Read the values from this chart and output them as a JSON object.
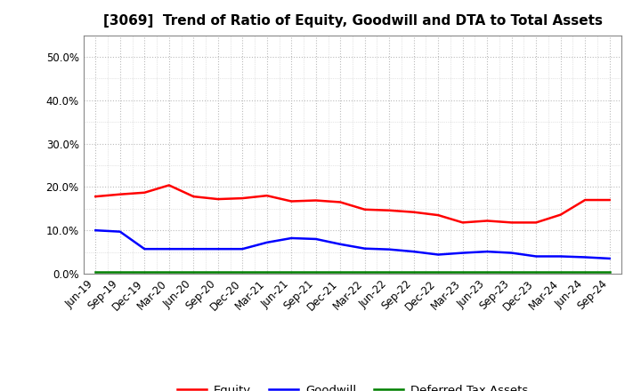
{
  "title": "[3069]  Trend of Ratio of Equity, Goodwill and DTA to Total Assets",
  "x_labels": [
    "Jun-19",
    "Sep-19",
    "Dec-19",
    "Mar-20",
    "Jun-20",
    "Sep-20",
    "Dec-20",
    "Mar-21",
    "Jun-21",
    "Sep-21",
    "Dec-21",
    "Mar-22",
    "Jun-22",
    "Sep-22",
    "Dec-22",
    "Mar-23",
    "Jun-23",
    "Sep-23",
    "Dec-23",
    "Mar-24",
    "Jun-24",
    "Sep-24"
  ],
  "equity": [
    0.178,
    0.183,
    0.187,
    0.204,
    0.178,
    0.172,
    0.174,
    0.18,
    0.167,
    0.169,
    0.165,
    0.148,
    0.146,
    0.142,
    0.135,
    0.118,
    0.122,
    0.118,
    0.118,
    0.136,
    0.17,
    0.17
  ],
  "goodwill": [
    0.1,
    0.097,
    0.057,
    0.057,
    0.057,
    0.057,
    0.057,
    0.072,
    0.082,
    0.08,
    0.068,
    0.058,
    0.056,
    0.051,
    0.044,
    0.048,
    0.051,
    0.048,
    0.04,
    0.04,
    0.038,
    0.035
  ],
  "dta": [
    0.005,
    0.005,
    0.005,
    0.005,
    0.005,
    0.005,
    0.005,
    0.005,
    0.005,
    0.005,
    0.005,
    0.005,
    0.005,
    0.005,
    0.005,
    0.005,
    0.005,
    0.005,
    0.005,
    0.005,
    0.005,
    0.005
  ],
  "equity_color": "#ff0000",
  "goodwill_color": "#0000ff",
  "dta_color": "#008000",
  "ylim": [
    0.0,
    0.55
  ],
  "yticks": [
    0.0,
    0.1,
    0.2,
    0.3,
    0.4,
    0.5
  ],
  "background_color": "#ffffff",
  "grid_color": "#aaaaaa",
  "title_fontsize": 11,
  "tick_fontsize": 8.5,
  "legend_labels": [
    "Equity",
    "Goodwill",
    "Deferred Tax Assets"
  ],
  "line_width": 1.8
}
